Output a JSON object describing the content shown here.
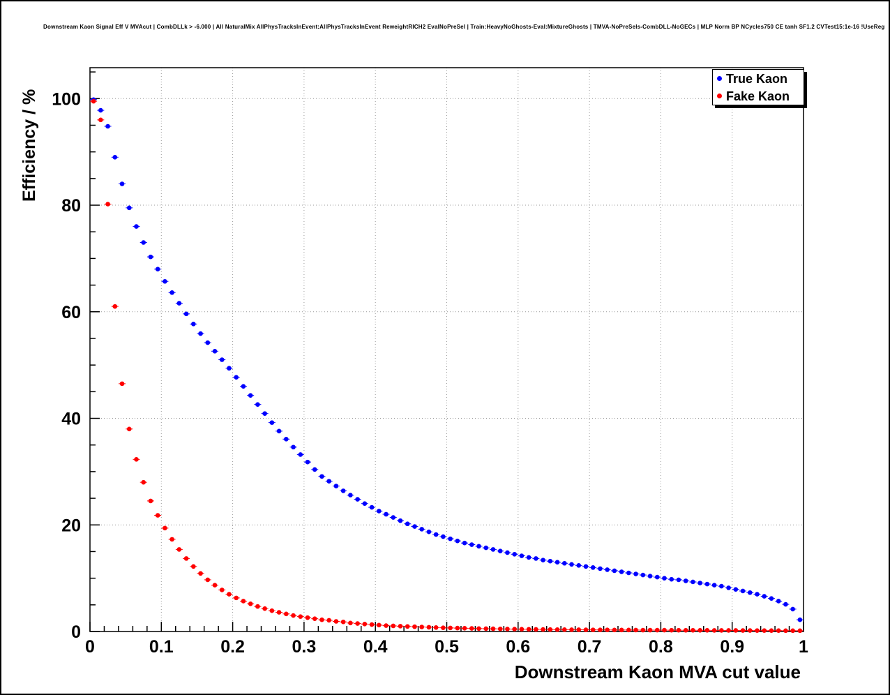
{
  "chart_data": {
    "type": "scatter",
    "title": "Downstream Kaon Signal Eff V MVAcut | CombDLLk > -6.000 | All NaturalMix AllPhysTracksInEvent:AllPhysTracksInEvent ReweightRICH2 EvalNoPreSel | Train:HeavyNoGhosts-Eval:MixtureGhosts | TMVA-NoPreSels-CombDLL-NoGECs | MLP Norm BP NCycles750 CE tanh SF1.2 CVTest15:1e-16 !UseReg",
    "xlabel": "Downstream Kaon MVA cut value",
    "ylabel": "Efficiency / %",
    "xlim": [
      0,
      1
    ],
    "ylim": [
      0,
      105.8
    ],
    "x_ticks": [
      0,
      0.1,
      0.2,
      0.3,
      0.4,
      0.5,
      0.6,
      0.7,
      0.8,
      0.9,
      1
    ],
    "x_tick_labels": [
      "0",
      "0.1",
      "0.2",
      "0.3",
      "0.4",
      "0.5",
      "0.6",
      "0.7",
      "0.8",
      "0.9",
      "1"
    ],
    "y_ticks": [
      0,
      20,
      40,
      60,
      80,
      100
    ],
    "y_tick_labels": [
      "0",
      "20",
      "40",
      "60",
      "80",
      "100"
    ],
    "x_minor_step": 0.02,
    "y_minor_step": 5,
    "grid": {
      "show": true,
      "style": "dotted",
      "color": "#999999"
    },
    "frame_color": "#000000",
    "marker_style": "filled-circle",
    "marker_radius": 3.3,
    "legend": {
      "position": "top-right",
      "entries": [
        {
          "label": "True Kaon",
          "color": "#0000ff"
        },
        {
          "label": "Fake Kaon",
          "color": "#ff0000"
        }
      ]
    },
    "x": [
      0.005,
      0.015,
      0.025,
      0.035,
      0.045,
      0.055,
      0.065,
      0.075,
      0.085,
      0.095,
      0.105,
      0.115,
      0.125,
      0.135,
      0.145,
      0.155,
      0.165,
      0.175,
      0.185,
      0.195,
      0.205,
      0.215,
      0.225,
      0.235,
      0.245,
      0.255,
      0.265,
      0.275,
      0.285,
      0.295,
      0.305,
      0.315,
      0.325,
      0.335,
      0.345,
      0.355,
      0.365,
      0.375,
      0.385,
      0.395,
      0.405,
      0.415,
      0.425,
      0.435,
      0.445,
      0.455,
      0.465,
      0.475,
      0.485,
      0.495,
      0.505,
      0.515,
      0.525,
      0.535,
      0.545,
      0.555,
      0.565,
      0.575,
      0.585,
      0.595,
      0.605,
      0.615,
      0.625,
      0.635,
      0.645,
      0.655,
      0.665,
      0.675,
      0.685,
      0.695,
      0.705,
      0.715,
      0.725,
      0.735,
      0.745,
      0.755,
      0.765,
      0.775,
      0.785,
      0.795,
      0.805,
      0.815,
      0.825,
      0.835,
      0.845,
      0.855,
      0.865,
      0.875,
      0.885,
      0.895,
      0.905,
      0.915,
      0.925,
      0.935,
      0.945,
      0.955,
      0.965,
      0.975,
      0.985,
      0.995
    ],
    "series": [
      {
        "name": "True Kaon",
        "color": "#0000ff",
        "y": [
          99.8,
          97.8,
          94.8,
          89.0,
          84.0,
          79.5,
          76.0,
          73.0,
          70.3,
          68.0,
          65.7,
          63.6,
          61.6,
          59.6,
          57.7,
          55.9,
          54.2,
          52.6,
          51.0,
          49.4,
          47.7,
          46.0,
          44.3,
          42.6,
          40.9,
          39.2,
          37.6,
          36.1,
          34.6,
          33.2,
          31.8,
          30.4,
          29.1,
          28.2,
          27.3,
          26.4,
          25.6,
          24.8,
          24.0,
          23.3,
          22.6,
          22.0,
          21.4,
          20.8,
          20.2,
          19.7,
          19.2,
          18.7,
          18.2,
          17.8,
          17.4,
          17.0,
          16.6,
          16.3,
          16.0,
          15.7,
          15.4,
          15.1,
          14.8,
          14.5,
          14.2,
          13.9,
          13.7,
          13.4,
          13.2,
          13.0,
          12.8,
          12.6,
          12.4,
          12.2,
          12.0,
          11.8,
          11.6,
          11.4,
          11.2,
          11.0,
          10.8,
          10.6,
          10.4,
          10.2,
          10.0,
          9.8,
          9.7,
          9.5,
          9.3,
          9.1,
          8.9,
          8.7,
          8.5,
          8.2,
          7.9,
          7.6,
          7.3,
          7.0,
          6.6,
          6.2,
          5.7,
          5.1,
          4.2,
          2.2
        ]
      },
      {
        "name": "Fake Kaon",
        "color": "#ff0000",
        "y": [
          99.5,
          96.0,
          80.2,
          61.0,
          46.5,
          38.0,
          32.3,
          28.0,
          24.5,
          21.8,
          19.4,
          17.3,
          15.4,
          13.7,
          12.2,
          10.9,
          9.7,
          8.7,
          7.8,
          7.0,
          6.3,
          5.7,
          5.2,
          4.7,
          4.3,
          3.9,
          3.6,
          3.3,
          3.0,
          2.8,
          2.6,
          2.4,
          2.2,
          2.1,
          1.9,
          1.8,
          1.6,
          1.5,
          1.4,
          1.3,
          1.2,
          1.1,
          1.05,
          1.0,
          0.95,
          0.9,
          0.85,
          0.8,
          0.75,
          0.7,
          0.67,
          0.64,
          0.61,
          0.58,
          0.55,
          0.53,
          0.51,
          0.49,
          0.47,
          0.45,
          0.43,
          0.42,
          0.4,
          0.39,
          0.37,
          0.36,
          0.35,
          0.34,
          0.33,
          0.32,
          0.31,
          0.3,
          0.3,
          0.29,
          0.28,
          0.28,
          0.27,
          0.26,
          0.26,
          0.25,
          0.25,
          0.24,
          0.24,
          0.23,
          0.23,
          0.22,
          0.22,
          0.21,
          0.21,
          0.2,
          0.2,
          0.19,
          0.19,
          0.18,
          0.18,
          0.17,
          0.17,
          0.16,
          0.16,
          0.15
        ]
      }
    ]
  }
}
